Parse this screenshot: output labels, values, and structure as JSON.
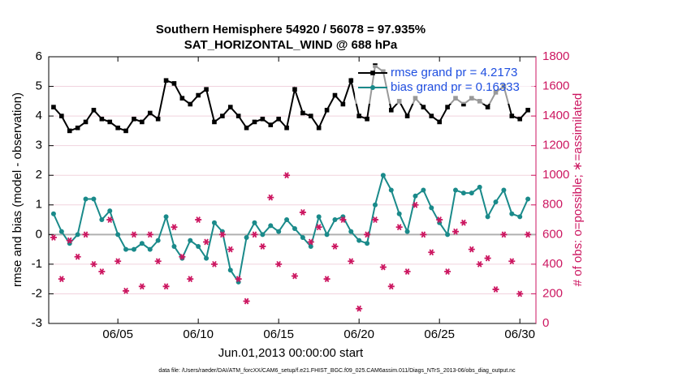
{
  "chart_data": {
    "type": "line",
    "title": "Southern Hemisphere 54920 / 56078 = 97.935%",
    "subtitle": "SAT_HORIZONTAL_WIND @ 688 hPa",
    "ylabel": "rmse and bias (model - observation)",
    "y2label": "# of obs: o=possible; ∗=assimilated",
    "xlabel": "Jun.01,2013 00:00:00 start",
    "footnote": "data file: /Users/raeder/DAI/ATM_forcXX/CAM6_setup/f.e21.FHIST_BGC.f09_025.CAM6assim.011/Diags_NTrS_2013-06/obs_diag_output.nc",
    "xlim": [
      0.7,
      31.0
    ],
    "xticks": [
      {
        "value": 5,
        "label": "06/05"
      },
      {
        "value": 10,
        "label": "06/10"
      },
      {
        "value": 15,
        "label": "06/15"
      },
      {
        "value": 20,
        "label": "06/20"
      },
      {
        "value": 25,
        "label": "06/25"
      },
      {
        "value": 30,
        "label": "06/30"
      }
    ],
    "ylim": [
      -3,
      6
    ],
    "yticks": [
      -3,
      -2,
      -1,
      0,
      1,
      2,
      3,
      4,
      5,
      6
    ],
    "y2lim": [
      0,
      1800
    ],
    "y2ticks": [
      0,
      200,
      400,
      600,
      800,
      1000,
      1200,
      1400,
      1600,
      1800
    ],
    "grid": true,
    "legend": "northeast",
    "x": [
      1,
      1.5,
      2,
      2.5,
      3,
      3.5,
      4,
      4.5,
      5,
      5.5,
      6,
      6.5,
      7,
      7.5,
      8,
      8.5,
      9,
      9.5,
      10,
      10.5,
      11,
      11.5,
      12,
      12.5,
      13,
      13.5,
      14,
      14.5,
      15,
      15.5,
      16,
      16.5,
      17,
      17.5,
      18,
      18.5,
      19,
      19.5,
      20,
      20.5,
      21,
      21.5,
      22,
      22.5,
      23,
      23.5,
      24,
      24.5,
      25,
      25.5,
      26,
      26.5,
      27,
      27.5,
      28,
      28.5,
      29,
      29.5,
      30,
      30.5
    ],
    "series": [
      {
        "name": "rmse grand pr = 4.2173",
        "color": "#000000",
        "marker": "square",
        "values": [
          4.3,
          4.0,
          3.5,
          3.6,
          3.8,
          4.2,
          3.9,
          3.8,
          3.6,
          3.5,
          3.9,
          3.8,
          4.1,
          3.9,
          5.2,
          5.1,
          4.6,
          4.4,
          4.7,
          4.9,
          3.8,
          4.0,
          4.3,
          4.0,
          3.6,
          3.8,
          3.9,
          3.7,
          3.9,
          3.6,
          4.9,
          4.1,
          4.0,
          3.6,
          4.2,
          4.7,
          4.4,
          5.2,
          4.0,
          3.9,
          5.7,
          5.5,
          4.2,
          4.5,
          4.0,
          4.6,
          4.3,
          4.0,
          3.8,
          4.3,
          4.6,
          4.4,
          4.6,
          4.5,
          4.3,
          4.8,
          5.0,
          4.0,
          3.9,
          4.2
        ]
      },
      {
        "name": "bias grand pr = 0.16333",
        "color": "#1a8a8a",
        "marker": "circle",
        "values": [
          0.7,
          0.1,
          -0.3,
          0.0,
          1.2,
          1.2,
          0.5,
          0.8,
          0.0,
          -0.5,
          -0.5,
          -0.3,
          -0.5,
          -0.2,
          0.6,
          -0.4,
          -0.8,
          -0.2,
          -0.4,
          -0.8,
          0.4,
          0.1,
          -1.2,
          -1.6,
          -0.1,
          0.4,
          0.0,
          0.3,
          0.1,
          0.5,
          0.2,
          -0.1,
          -0.4,
          0.6,
          0.0,
          0.5,
          0.6,
          0.1,
          -0.2,
          -0.3,
          1.0,
          2.0,
          1.5,
          0.7,
          0.1,
          1.3,
          1.5,
          0.9,
          0.4,
          0.0,
          1.5,
          1.4,
          1.4,
          1.6,
          0.6,
          1.1,
          1.5,
          0.7,
          0.6,
          1.2
        ]
      },
      {
        "color": "#cc1660",
        "marker": "star",
        "axis": "y2",
        "values": [
          580,
          300,
          560,
          450,
          600,
          400,
          350,
          700,
          420,
          220,
          600,
          250,
          600,
          420,
          250,
          650,
          450,
          300,
          700,
          550,
          400,
          600,
          500,
          300,
          150,
          600,
          520,
          850,
          400,
          1000,
          320,
          750,
          550,
          650,
          300,
          520,
          700,
          420,
          100,
          600,
          700,
          380,
          250,
          650,
          350,
          800,
          600,
          480,
          700,
          350,
          620,
          680,
          500,
          400,
          440,
          230,
          600,
          420,
          200,
          600
        ]
      }
    ]
  }
}
